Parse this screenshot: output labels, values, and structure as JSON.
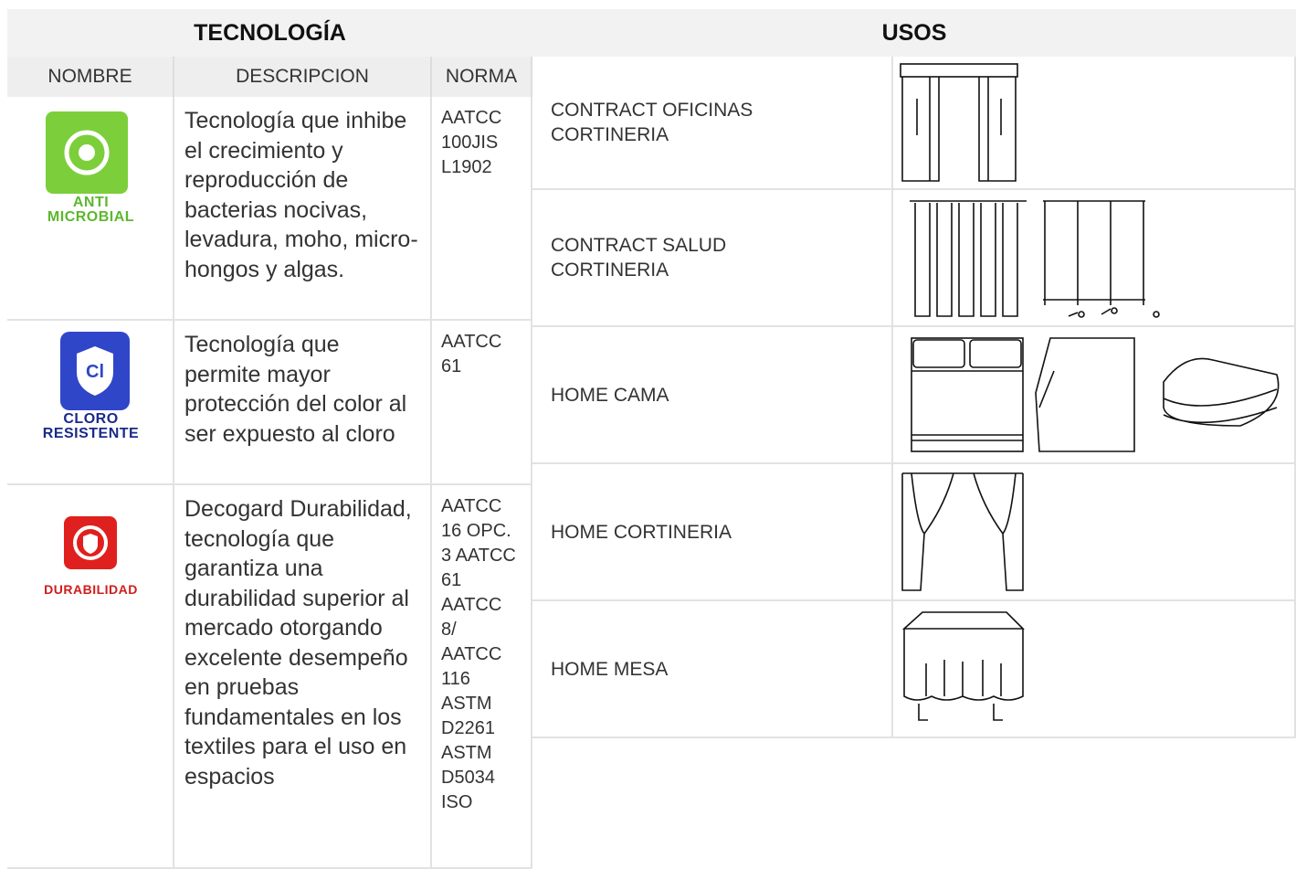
{
  "header": {
    "left": "TECNOLOGÍA",
    "right": "USOS"
  },
  "table": {
    "columns": [
      "NOMBRE",
      "DESCRIPCION",
      "NORMA"
    ],
    "rows": [
      {
        "logo": [
          "ANTI",
          "MICROBIAL"
        ],
        "description": "Tecnología que inhibe el crecimiento y reproducción de bacterias nocivas, levadura, moho, micro-hongos y algas.",
        "norma": "AATCC 100JIS L1902"
      },
      {
        "logo": [
          "CLORO",
          "RESISTENTE"
        ],
        "description": "Tecnología que permite mayor protección del color al ser expuesto al cloro",
        "norma": "AATCC 61"
      },
      {
        "logo": [
          "DURABILIDAD"
        ],
        "description": "Decogard Durabilidad, tecnología que garantiza una durabilidad superior al mercado otorgando excelente desempeño en pruebas fundamentales en los textiles para el uso en espacios",
        "norma": "AATCC 16 OPC. 3 AATCC 61 AATCC 8/ AATCC 116 ASTM D2261 ASTM D5034 ISO"
      }
    ]
  },
  "usos": [
    "CONTRACT OFICINAS CORTINERIA",
    "CONTRACT SALUD CORTINERIA",
    "HOME CAMA",
    "HOME CORTINERIA",
    "HOME MESA"
  ]
}
